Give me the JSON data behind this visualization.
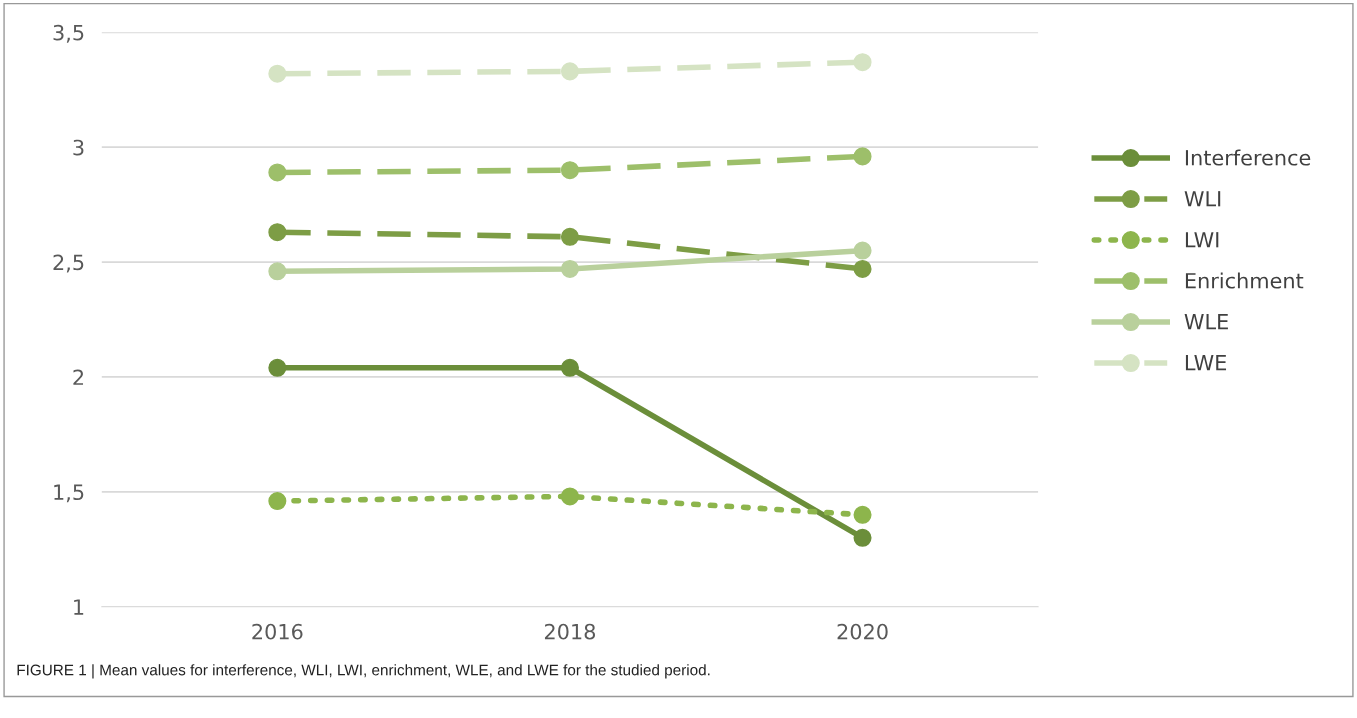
{
  "chart_data": {
    "type": "line",
    "categories": [
      "2016",
      "2018",
      "2020"
    ],
    "series": [
      {
        "name": "Interference",
        "color": "#6b8e3a",
        "line_style": "solid",
        "values": [
          2.04,
          2.04,
          1.3
        ]
      },
      {
        "name": "WLI",
        "color": "#7d9d45",
        "line_style": "dashed",
        "values": [
          2.63,
          2.61,
          2.47
        ]
      },
      {
        "name": "LWI",
        "color": "#8db54c",
        "line_style": "dotted",
        "values": [
          1.46,
          1.48,
          1.4
        ]
      },
      {
        "name": "Enrichment",
        "color": "#9dbf6a",
        "line_style": "dashed",
        "values": [
          2.89,
          2.9,
          2.96
        ]
      },
      {
        "name": "WLE",
        "color": "#b9d09c",
        "line_style": "solid",
        "values": [
          2.46,
          2.47,
          2.55
        ]
      },
      {
        "name": "LWE",
        "color": "#d5e3c3",
        "line_style": "dashed",
        "values": [
          3.32,
          3.33,
          3.37
        ]
      }
    ],
    "ylim": [
      1,
      3.5
    ],
    "yticks": [
      1,
      {
        "value": 1.5,
        "label": "1,5"
      },
      2,
      {
        "value": 2.5,
        "label": "2,5"
      },
      3,
      {
        "value": 3.5,
        "label": "3,5"
      }
    ],
    "grid": "y",
    "legend": "right",
    "marker": "circle",
    "annotations": [
      "FIGURE 1 | Mean values for interference, WLI, LWI, enrichment, WLE, and LWE for the studied period."
    ]
  }
}
